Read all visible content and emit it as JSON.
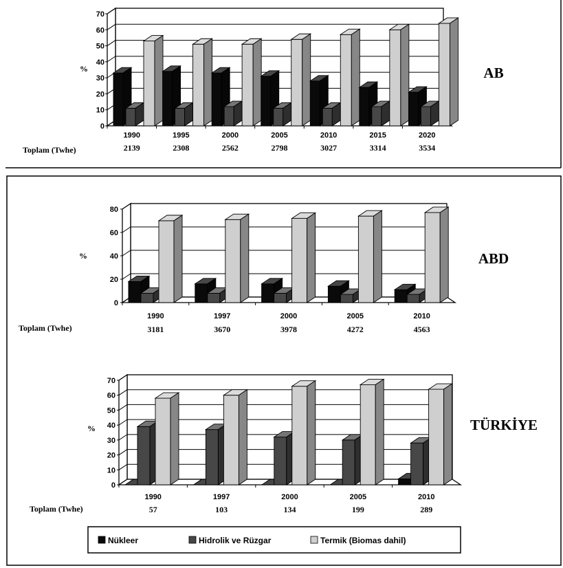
{
  "chart_data": [
    {
      "type": "bar",
      "region_label": "AB",
      "ylabel": "%",
      "ylim": [
        0,
        70
      ],
      "yticks": [
        0,
        10,
        20,
        30,
        40,
        50,
        60,
        70
      ],
      "categories": [
        "1990",
        "1995",
        "2000",
        "2005",
        "2010",
        "2015",
        "2020"
      ],
      "totals_label": "Toplam (Twhe)",
      "totals": [
        "2139",
        "2308",
        "2562",
        "2798",
        "3027",
        "3314",
        "3534"
      ],
      "series": [
        {
          "name": "Nükleer",
          "values": [
            33,
            34,
            33,
            31,
            28,
            24,
            21
          ]
        },
        {
          "name": "Hidrolik ve Rüzgar",
          "values": [
            11,
            11,
            12,
            11,
            11,
            12,
            12
          ]
        },
        {
          "name": "Termik (Biomas dahil)",
          "values": [
            53,
            51,
            51,
            54,
            57,
            60,
            64
          ]
        }
      ]
    },
    {
      "type": "bar",
      "region_label": "ABD",
      "ylabel": "%",
      "ylim": [
        0,
        80
      ],
      "yticks": [
        0,
        20,
        40,
        60,
        80
      ],
      "categories": [
        "1990",
        "1997",
        "2000",
        "2005",
        "2010"
      ],
      "totals_label": "Toplam (Twhe)",
      "totals": [
        "3181",
        "3670",
        "3978",
        "4272",
        "4563"
      ],
      "series": [
        {
          "name": "Nükleer",
          "values": [
            18,
            16,
            16,
            14,
            11
          ]
        },
        {
          "name": "Hidrolik ve Rüzgar",
          "values": [
            8,
            8,
            8,
            7,
            7
          ]
        },
        {
          "name": "Termik (Biomas dahil)",
          "values": [
            70,
            71,
            72,
            74,
            77
          ]
        }
      ]
    },
    {
      "type": "bar",
      "region_label": "TÜRKİYE",
      "ylabel": "%",
      "ylim": [
        0,
        70
      ],
      "yticks": [
        0,
        10,
        20,
        30,
        40,
        50,
        60,
        70
      ],
      "categories": [
        "1990",
        "1997",
        "2000",
        "2005",
        "2010"
      ],
      "totals_label": "Toplam (Twhe)",
      "totals": [
        "57",
        "103",
        "134",
        "199",
        "289"
      ],
      "series": [
        {
          "name": "Nükleer",
          "values": [
            0,
            0,
            0,
            0,
            4
          ]
        },
        {
          "name": "Hidrolik ve Rüzgar",
          "values": [
            39,
            37,
            32,
            30,
            28
          ]
        },
        {
          "name": "Termik (Biomas dahil)",
          "values": [
            58,
            60,
            66,
            67,
            64
          ]
        }
      ]
    }
  ],
  "legend": [
    {
      "label": "Nükleer",
      "color": "#0a0a0a"
    },
    {
      "label": "Hidrolik ve Rüzgar",
      "color": "#474747"
    },
    {
      "label": "Termik (Biomas dahil)",
      "color": "#cfcfcf"
    }
  ],
  "colors": {
    "series": [
      "#0a0a0a",
      "#474747",
      "#cfcfcf"
    ],
    "axis": "#000000"
  }
}
